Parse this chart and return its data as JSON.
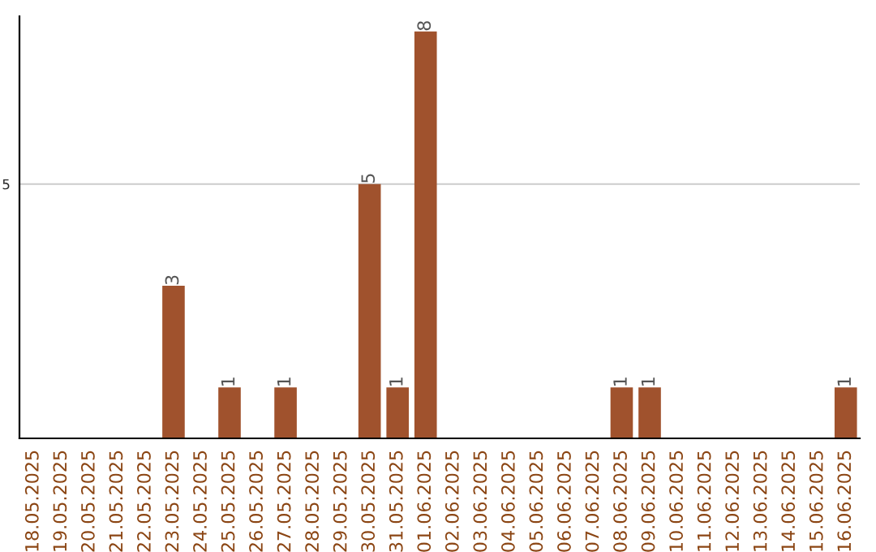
{
  "chart_data": {
    "type": "bar",
    "categories": [
      "18.05.2025",
      "19.05.2025",
      "20.05.2025",
      "21.05.2025",
      "22.05.2025",
      "23.05.2025",
      "24.05.2025",
      "25.05.2025",
      "26.05.2025",
      "27.05.2025",
      "28.05.2025",
      "29.05.2025",
      "30.05.2025",
      "31.05.2025",
      "01.06.2025",
      "02.06.2025",
      "03.06.2025",
      "04.06.2025",
      "05.06.2025",
      "06.06.2025",
      "07.06.2025",
      "08.06.2025",
      "09.06.2025",
      "10.06.2025",
      "11.06.2025",
      "12.06.2025",
      "13.06.2025",
      "14.06.2025",
      "15.06.2025",
      "16.06.2025"
    ],
    "values": [
      0,
      0,
      0,
      0,
      0,
      3,
      0,
      1,
      0,
      1,
      0,
      0,
      5,
      1,
      8,
      0,
      0,
      0,
      0,
      0,
      0,
      1,
      1,
      0,
      0,
      0,
      0,
      0,
      0,
      1
    ],
    "value_labels": [
      null,
      null,
      null,
      null,
      null,
      "3",
      null,
      "1",
      null,
      "1",
      null,
      null,
      "5",
      "1",
      "8",
      null,
      null,
      null,
      null,
      null,
      null,
      "1",
      "1",
      null,
      null,
      null,
      null,
      null,
      null,
      "1"
    ],
    "color": "#a0522d",
    "ylim": [
      0,
      8.3
    ],
    "yticks": [
      5
    ],
    "grid": "y",
    "legend": false
  }
}
